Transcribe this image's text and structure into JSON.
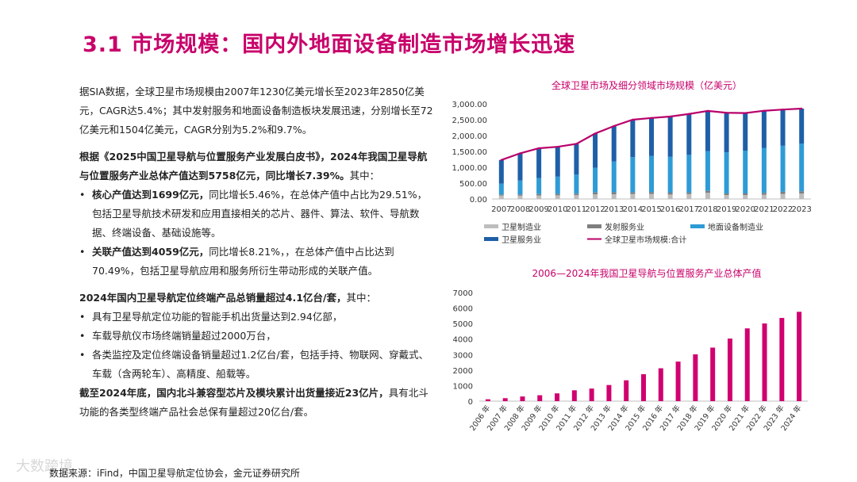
{
  "title": "3.1 市场规模：国内外地面设备制造市场增长迅速",
  "left": {
    "p1": "据SIA数据，全球卫星市场规模由2007年1230亿美元增长至2023年2850亿美元，CAGR达5.4%；其中发射服务和地面设备制造板块发展迅速，分别增长至72亿美元和1504亿美元，CAGR分别为5.2%和9.7%。",
    "p2_bold": "根据《2025中国卫星导航与位置服务产业发展白皮书》，2024年我国卫星导航与位置服务产业总体产值达到5758亿元，同比增长7.39%。",
    "p2_rest": "其中：",
    "b1_bold": "核心产值达到1699亿元，",
    "b1_rest": "同比增长5.46%，在总体产值中占比为29.51%，包括卫星导航技术研发和应用直接相关的芯片、器件、算法、软件、导航数据、终端设备、基础设施等。",
    "b2_bold": "关联产值达到4059亿元，",
    "b2_rest": "同比增长8.21%，，在总体产值中占比达到70.49%，包括卫星导航应用和服务所衍生带动形成的关联产值。",
    "p3_bold": "2024年国内卫星导航定位终端产品总销量超过4.1亿台/套，",
    "p3_rest": "其中：",
    "b3": "具有卫星导航定位功能的智能手机出货量达到2.94亿部，",
    "b4": "车载导航仪市场终端销量超过2000万台，",
    "b5": "各类监控及定位终端设备销量超过1.2亿台/套，包括手持、物联网、穿戴式、车载（含两轮车）、高精度、船载等。",
    "p4_bold": "截至2024年底，国内北斗兼容型芯片及模块累计出货量接近23亿片，",
    "p4_rest": "具有北斗功能的各类型终端产品社会总保有量超过20亿台/套。",
    "bullet_char": "•"
  },
  "source": "数据来源：iFind，中国卫星导航定位协会，金元证券研究所",
  "watermark": "大数跨境",
  "colors": {
    "accent": "#c8006a",
    "mfg": "#bdbdbd",
    "launch": "#7f7f7f",
    "ground": "#2e9bd6",
    "service": "#1f5fa8",
    "total": "#b8006a",
    "bar2": "#d0006f"
  },
  "chart_data": [
    {
      "type": "bar",
      "stacked": true,
      "title": "全球卫星市场及细分领域市场规模（亿美元）",
      "categories": [
        "2007",
        "2008",
        "2009",
        "2010",
        "2011",
        "2012",
        "2013",
        "2014",
        "2015",
        "2016",
        "2017",
        "2018",
        "2019",
        "2020",
        "2021",
        "2022",
        "2023"
      ],
      "series": [
        {
          "name": "卫星制造业",
          "values": [
            110,
            105,
            110,
            115,
            120,
            145,
            150,
            155,
            160,
            140,
            155,
            195,
            125,
            122,
            135,
            158,
            173
          ]
        },
        {
          "name": "发射服务业",
          "values": [
            32,
            39,
            45,
            45,
            48,
            60,
            60,
            55,
            55,
            60,
            46,
            62,
            49,
            53,
            57,
            70,
            72
          ]
        },
        {
          "name": "地面设备制造业",
          "values": [
            340,
            440,
            505,
            545,
            600,
            780,
            970,
            1110,
            1140,
            1130,
            1190,
            1250,
            1300,
            1350,
            1420,
            1450,
            1504
          ]
        },
        {
          "name": "卫星服务业",
          "values": [
            748,
            856,
            940,
            940,
            970,
            1080,
            1120,
            1180,
            1200,
            1270,
            1290,
            1270,
            1245,
            1185,
            1170,
            1142,
            1101
          ]
        }
      ],
      "line": {
        "name": "全球卫星市场规模:合计",
        "values": [
          1230,
          1440,
          1600,
          1645,
          1738,
          2065,
          2300,
          2500,
          2555,
          2600,
          2681,
          2777,
          2719,
          2710,
          2782,
          2820,
          2850
        ]
      },
      "yticks": [
        "3,000.00",
        "2,500.00",
        "2,000.00",
        "1,500.00",
        "1,000.00",
        "500.00",
        "0.00"
      ],
      "ylim": [
        0,
        3000
      ],
      "legend_position": "bottom"
    },
    {
      "type": "bar",
      "title": "2006—2024年我国卫星导航与位置服务产业总体产值",
      "categories": [
        "2006 年",
        "2007 年",
        "2008 年",
        "2009 年",
        "2010 年",
        "2011 年",
        "2012 年",
        "2013 年",
        "2014 年",
        "2015 年",
        "2016 年",
        "2017 年",
        "2018 年",
        "2019 年",
        "2020 年",
        "2021 年",
        "2022 年",
        "2023 年",
        "2024 年"
      ],
      "values": [
        120,
        190,
        300,
        380,
        500,
        700,
        810,
        1040,
        1343,
        1735,
        2118,
        2550,
        3016,
        3450,
        4033,
        4690,
        5007,
        5362,
        5758
      ],
      "yticks": [
        "7000",
        "6000",
        "5000",
        "4000",
        "3000",
        "2000",
        "1000",
        "0"
      ],
      "ylim": [
        0,
        7000
      ]
    }
  ]
}
